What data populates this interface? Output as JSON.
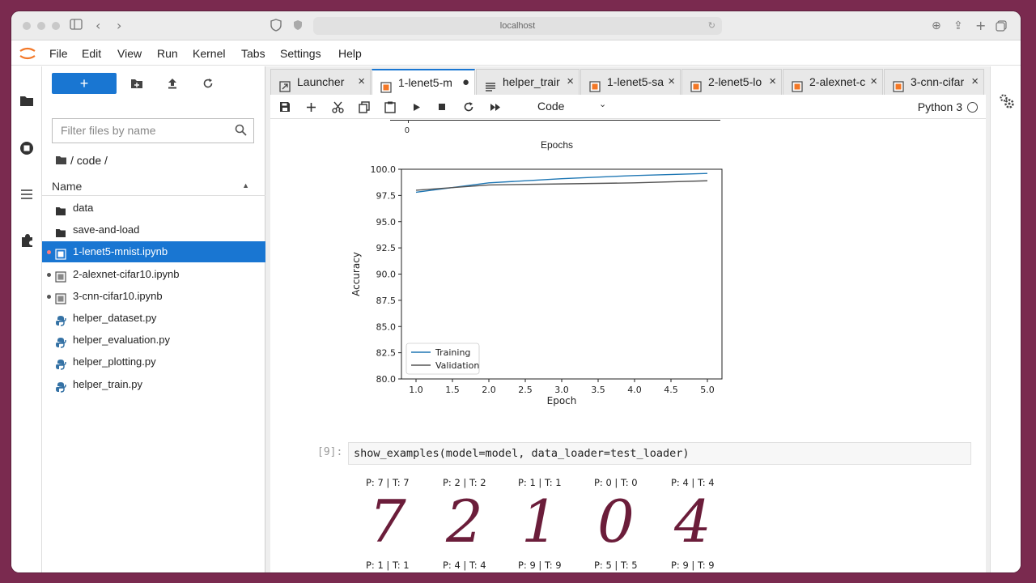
{
  "browser": {
    "url": "localhost"
  },
  "menu": [
    "File",
    "Edit",
    "View",
    "Run",
    "Kernel",
    "Tabs",
    "Settings",
    "Help"
  ],
  "filebrowser": {
    "new_label": "+",
    "filter_placeholder": "Filter files by name",
    "breadcrumb": "/ code /",
    "column_name": "Name",
    "files": [
      {
        "name": "data",
        "type": "folder",
        "running": false,
        "selected": false
      },
      {
        "name": "save-and-load",
        "type": "folder",
        "running": false,
        "selected": false
      },
      {
        "name": "1-lenet5-mnist.ipynb",
        "type": "notebook",
        "running": true,
        "selected": true
      },
      {
        "name": "2-alexnet-cifar10.ipynb",
        "type": "notebook",
        "running": true,
        "selected": false
      },
      {
        "name": "3-cnn-cifar10.ipynb",
        "type": "notebook",
        "running": true,
        "selected": false
      },
      {
        "name": "helper_dataset.py",
        "type": "python",
        "running": false,
        "selected": false
      },
      {
        "name": "helper_evaluation.py",
        "type": "python",
        "running": false,
        "selected": false
      },
      {
        "name": "helper_plotting.py",
        "type": "python",
        "running": false,
        "selected": false
      },
      {
        "name": "helper_train.py",
        "type": "python",
        "running": false,
        "selected": false
      }
    ]
  },
  "tabs": [
    {
      "label": "Launcher",
      "icon": "launcher-icon",
      "active": false,
      "close": "×"
    },
    {
      "label": "1-lenet5-m",
      "icon": "notebook-icon",
      "active": true,
      "close": "●"
    },
    {
      "label": "helper_trair",
      "icon": "text-file-icon",
      "active": false,
      "close": "×"
    },
    {
      "label": "1-lenet5-sa",
      "icon": "notebook-icon",
      "active": false,
      "close": "×"
    },
    {
      "label": "2-lenet5-lo",
      "icon": "notebook-icon",
      "active": false,
      "close": "×"
    },
    {
      "label": "2-alexnet-c",
      "icon": "notebook-icon",
      "active": false,
      "close": "×"
    },
    {
      "label": "3-cnn-cifar",
      "icon": "notebook-icon",
      "active": false,
      "close": "×"
    }
  ],
  "notebook_toolbar": {
    "cell_type": "Code",
    "kernel": "Python 3"
  },
  "previous_plot": {
    "tick_label": "0",
    "xlabel": "Epochs"
  },
  "chart_data": {
    "type": "line",
    "x": [
      1,
      2,
      3,
      4,
      5
    ],
    "series": [
      {
        "name": "Training",
        "values": [
          97.8,
          98.7,
          99.1,
          99.4,
          99.6
        ],
        "color": "#1f77b4"
      },
      {
        "name": "Validation",
        "values": [
          98.0,
          98.5,
          98.6,
          98.7,
          98.9
        ],
        "color": "#555555"
      }
    ],
    "xlabel": "Epoch",
    "ylabel": "Accuracy",
    "xlim": [
      0.8,
      5.2
    ],
    "ylim": [
      80.0,
      100.0
    ],
    "xticks": [
      "1.0",
      "1.5",
      "2.0",
      "2.5",
      "3.0",
      "3.5",
      "4.0",
      "4.5",
      "5.0"
    ],
    "yticks": [
      "80.0",
      "82.5",
      "85.0",
      "87.5",
      "90.0",
      "92.5",
      "95.0",
      "97.5",
      "100.0"
    ],
    "legend_position": "lower-left",
    "grid": false
  },
  "cell": {
    "prompt": "[9]:",
    "code": "show_examples(model=model, data_loader=test_loader)"
  },
  "examples_top": [
    {
      "label": "P: 7 | T: 7",
      "digit": "7"
    },
    {
      "label": "P: 2 | T: 2",
      "digit": "2"
    },
    {
      "label": "P: 1 | T: 1",
      "digit": "1"
    },
    {
      "label": "P: 0 | T: 0",
      "digit": "0"
    },
    {
      "label": "P: 4 | T: 4",
      "digit": "4"
    }
  ],
  "examples_bottom": [
    "P: 1 | T: 1",
    "P: 4 | T: 4",
    "P: 9 | T: 9",
    "P: 5 | T: 5",
    "P: 9 | T: 9"
  ]
}
